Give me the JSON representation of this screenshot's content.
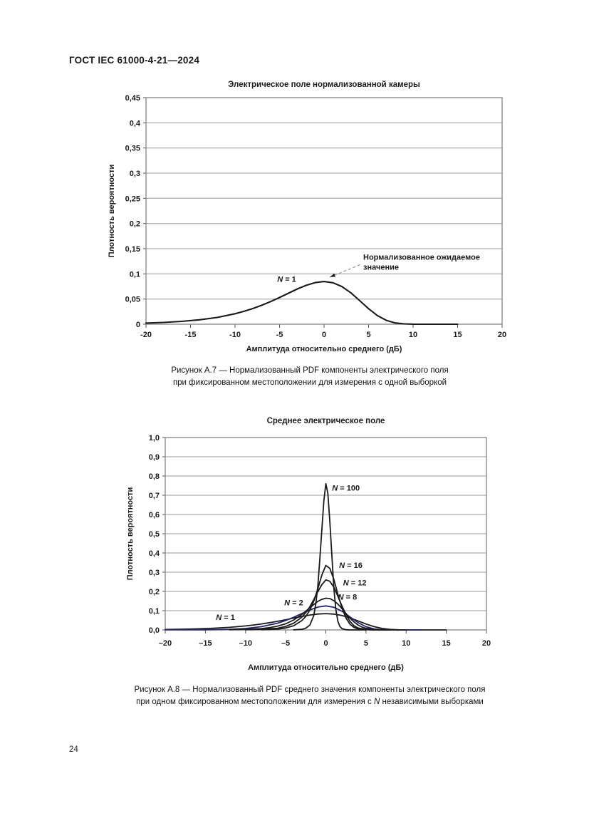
{
  "page": {
    "header": "ГОСТ IEC 61000-4-21—2024",
    "page_number": "24"
  },
  "figures": {
    "a7_caption_line1": "Рисунок А.7 — Нормализованный PDF компоненты электрического поля",
    "a7_caption_line2": "при фиксированном местоположении для измерения с одной выборкой",
    "a8_caption_line1": "Рисунок А.8 — Нормализованный PDF среднего значения компоненты электрического поля",
    "a8_caption_line2_pre": "при одном фиксированном местоположении для измерения с ",
    "a8_caption_line2_var": "N",
    "a8_caption_line2_post": " независимыми выборками"
  },
  "chart_data": [
    {
      "id": "a7",
      "type": "line",
      "title": "Электрическое поле нормализованной камеры",
      "xlabel": "Амплитуда относительно среднего (дБ)",
      "ylabel": "Плотность вероятности",
      "xlim": [
        -20,
        20
      ],
      "ylim": [
        0,
        0.45
      ],
      "grid": "horizontal",
      "legend_position": "inline-labels",
      "xtick_values": [
        -20,
        -15,
        -10,
        -5,
        0,
        5,
        10,
        15,
        20
      ],
      "xtick_labels": [
        "-20",
        "-15",
        "-10",
        "-5",
        "0",
        "5",
        "10",
        "15",
        "20"
      ],
      "ytick_values": [
        0,
        0.05,
        0.1,
        0.15,
        0.2,
        0.25,
        0.3,
        0.35,
        0.4,
        0.45
      ],
      "ytick_labels": [
        "0",
        "0,05",
        "0,1",
        "0,15",
        "0,2",
        "0,25",
        "0,3",
        "0,35",
        "0,4",
        "0,45"
      ],
      "annotation": {
        "line1": "Нормализованное ожидаемое",
        "line2": "значение",
        "text_x": 4.4,
        "text_y": 0.128,
        "tail_x": 4.05,
        "tail_y": 0.118,
        "tip_x": 0.65,
        "tip_y": 0.0935
      },
      "series": [
        {
          "name": "N = 1",
          "color": "#1a1a1a",
          "label_x": -4.2,
          "label_y": 0.0845,
          "peak": {
            "x": 0,
            "y": 0.085
          },
          "points": [
            [
              -20,
              0.0023
            ],
            [
              -18,
              0.0036
            ],
            [
              -16,
              0.0057
            ],
            [
              -14,
              0.0088
            ],
            [
              -12,
              0.0135
            ],
            [
              -10,
              0.0208
            ],
            [
              -9,
              0.0256
            ],
            [
              -8,
              0.0312
            ],
            [
              -7,
              0.0377
            ],
            [
              -6,
              0.045
            ],
            [
              -5,
              0.0531
            ],
            [
              -4,
              0.0616
            ],
            [
              -3,
              0.0701
            ],
            [
              -2,
              0.0773
            ],
            [
              -1,
              0.0826
            ],
            [
              0,
              0.0847
            ],
            [
              1,
              0.0823
            ],
            [
              2,
              0.0748
            ],
            [
              3,
              0.0625
            ],
            [
              4,
              0.0469
            ],
            [
              5,
              0.0309
            ],
            [
              6,
              0.0171
            ],
            [
              7,
              0.0077
            ],
            [
              8,
              0.0026
            ],
            [
              9,
              0.0007
            ],
            [
              10,
              0.0001
            ],
            [
              12,
              0
            ],
            [
              15,
              0
            ]
          ]
        }
      ]
    },
    {
      "id": "a8",
      "type": "line",
      "title": "Среднее электрическое поле",
      "xlabel": "Амплитуда относительно среднего (дБ)",
      "ylabel": "Плотность вероятности",
      "xlim": [
        -20,
        20
      ],
      "ylim": [
        0,
        1.0
      ],
      "grid": "horizontal",
      "legend_position": "inline-labels",
      "xtick_values": [
        -20,
        -15,
        -10,
        -5,
        0,
        5,
        10,
        15,
        20
      ],
      "xtick_labels": [
        "–20",
        "–15",
        "–10",
        "–5",
        "0",
        "5",
        "10",
        "15",
        "20"
      ],
      "ytick_values": [
        0,
        0.1,
        0.2,
        0.3,
        0.4,
        0.5,
        0.6,
        0.7,
        0.8,
        0.9,
        1.0
      ],
      "ytick_labels": [
        "0,0",
        "0,1",
        "0,2",
        "0,3",
        "0,4",
        "0,5",
        "0,6",
        "0,7",
        "0,8",
        "0,9",
        "1,0"
      ],
      "series": [
        {
          "name": "N = 1",
          "color": "#1a1a1a",
          "label_x": -12.5,
          "label_y": 0.052,
          "peak": {
            "x": 0,
            "y": 0.085
          },
          "points": [
            [
              -20,
              0.0023
            ],
            [
              -18,
              0.0036
            ],
            [
              -16,
              0.0057
            ],
            [
              -14,
              0.0088
            ],
            [
              -12,
              0.0135
            ],
            [
              -10,
              0.0208
            ],
            [
              -9,
              0.0256
            ],
            [
              -8,
              0.0312
            ],
            [
              -7,
              0.0377
            ],
            [
              -6,
              0.045
            ],
            [
              -5,
              0.0531
            ],
            [
              -4,
              0.0616
            ],
            [
              -3,
              0.0701
            ],
            [
              -2,
              0.0773
            ],
            [
              -1,
              0.0826
            ],
            [
              0,
              0.0847
            ],
            [
              1,
              0.0823
            ],
            [
              2,
              0.0748
            ],
            [
              3,
              0.0625
            ],
            [
              4,
              0.0469
            ],
            [
              5,
              0.0309
            ],
            [
              6,
              0.0171
            ],
            [
              7,
              0.0077
            ],
            [
              8,
              0.0026
            ],
            [
              9,
              0.0007
            ],
            [
              10,
              0.0001
            ],
            [
              12,
              0
            ],
            [
              15,
              0
            ]
          ]
        },
        {
          "name": "N = 2",
          "color": "#23246e",
          "label_x": -4.0,
          "label_y": 0.128,
          "peak": {
            "x": 0,
            "y": 0.125
          },
          "points": [
            [
              -20,
              0.0002
            ],
            [
              -15,
              0.0009
            ],
            [
              -12,
              0.0032
            ],
            [
              -10,
              0.0075
            ],
            [
              -8,
              0.0169
            ],
            [
              -6,
              0.0352
            ],
            [
              -5,
              0.0489
            ],
            [
              -4,
              0.0659
            ],
            [
              -3,
              0.0849
            ],
            [
              -2,
              0.1038
            ],
            [
              -1,
              0.1186
            ],
            [
              0,
              0.1247
            ],
            [
              1,
              0.1177
            ],
            [
              2,
              0.0972
            ],
            [
              3,
              0.0678
            ],
            [
              4,
              0.0381
            ],
            [
              5,
              0.0166
            ],
            [
              6,
              0.0051
            ],
            [
              7,
              0.001
            ],
            [
              8,
              0.0002
            ],
            [
              10,
              0
            ],
            [
              12,
              0
            ]
          ]
        },
        {
          "name": "N = 8",
          "color": "#1a1a1a",
          "label_x": 2.7,
          "label_y": 0.157,
          "peak": {
            "x": 0,
            "y": 0.165
          },
          "points": [
            [
              -12,
              0.001
            ],
            [
              -10,
              0.003
            ],
            [
              -8,
              0.007
            ],
            [
              -7,
              0.012
            ],
            [
              -6,
              0.02
            ],
            [
              -5,
              0.032
            ],
            [
              -4,
              0.052
            ],
            [
              -3,
              0.08
            ],
            [
              -2,
              0.115
            ],
            [
              -1.5,
              0.132
            ],
            [
              -1,
              0.148
            ],
            [
              -0.5,
              0.159
            ],
            [
              0,
              0.165
            ],
            [
              0.5,
              0.163
            ],
            [
              1,
              0.152
            ],
            [
              1.5,
              0.134
            ],
            [
              2,
              0.111
            ],
            [
              2.5,
              0.086
            ],
            [
              3,
              0.062
            ],
            [
              3.5,
              0.042
            ],
            [
              4,
              0.026
            ],
            [
              4.5,
              0.015
            ],
            [
              5,
              0.008
            ],
            [
              6,
              0.002
            ],
            [
              7,
              0.0005
            ],
            [
              8,
              0
            ],
            [
              10,
              0
            ]
          ]
        },
        {
          "name": "N = 12",
          "color": "#1a1a1a",
          "label_x": 3.6,
          "label_y": 0.232,
          "peak": {
            "x": 0,
            "y": 0.26
          },
          "points": [
            [
              -10,
              0.001
            ],
            [
              -8,
              0.003
            ],
            [
              -6,
              0.009
            ],
            [
              -5,
              0.018
            ],
            [
              -4,
              0.035
            ],
            [
              -3,
              0.066
            ],
            [
              -2.5,
              0.09
            ],
            [
              -2,
              0.12
            ],
            [
              -1.5,
              0.158
            ],
            [
              -1,
              0.198
            ],
            [
              -0.5,
              0.235
            ],
            [
              0,
              0.26
            ],
            [
              0.5,
              0.253
            ],
            [
              1,
              0.222
            ],
            [
              1.5,
              0.175
            ],
            [
              2,
              0.125
            ],
            [
              2.5,
              0.08
            ],
            [
              3,
              0.045
            ],
            [
              3.5,
              0.022
            ],
            [
              4,
              0.01
            ],
            [
              5,
              0.002
            ],
            [
              6,
              0
            ],
            [
              8,
              0
            ]
          ]
        },
        {
          "name": "N = 16",
          "color": "#1a1a1a",
          "label_x": 3.1,
          "label_y": 0.322,
          "peak": {
            "x": 0,
            "y": 0.335
          },
          "points": [
            [
              -8,
              0.001
            ],
            [
              -6,
              0.004
            ],
            [
              -5,
              0.01
            ],
            [
              -4,
              0.022
            ],
            [
              -3,
              0.048
            ],
            [
              -2.5,
              0.07
            ],
            [
              -2,
              0.103
            ],
            [
              -1.5,
              0.15
            ],
            [
              -1,
              0.213
            ],
            [
              -0.5,
              0.285
            ],
            [
              0,
              0.335
            ],
            [
              0.5,
              0.32
            ],
            [
              1,
              0.262
            ],
            [
              1.5,
              0.185
            ],
            [
              2,
              0.115
            ],
            [
              2.5,
              0.062
            ],
            [
              3,
              0.03
            ],
            [
              3.5,
              0.013
            ],
            [
              4,
              0.005
            ],
            [
              5,
              0.001
            ],
            [
              6,
              0
            ],
            [
              8,
              0
            ]
          ]
        },
        {
          "name": "N = 100",
          "color": "#1a1a1a",
          "label_x": 2.5,
          "label_y": 0.725,
          "peak": {
            "x": 0,
            "y": 0.76
          },
          "points": [
            [
              -4,
              0.0005
            ],
            [
              -3,
              0.003
            ],
            [
              -2.5,
              0.009
            ],
            [
              -2,
              0.025
            ],
            [
              -1.5,
              0.075
            ],
            [
              -1.25,
              0.135
            ],
            [
              -1,
              0.225
            ],
            [
              -0.75,
              0.365
            ],
            [
              -0.5,
              0.52
            ],
            [
              -0.25,
              0.67
            ],
            [
              0,
              0.76
            ],
            [
              0.25,
              0.71
            ],
            [
              0.5,
              0.565
            ],
            [
              0.75,
              0.385
            ],
            [
              1,
              0.215
            ],
            [
              1.25,
              0.105
            ],
            [
              1.5,
              0.045
            ],
            [
              1.75,
              0.018
            ],
            [
              2,
              0.007
            ],
            [
              2.5,
              0.001
            ],
            [
              3,
              0
            ],
            [
              5,
              0
            ]
          ]
        }
      ]
    }
  ]
}
